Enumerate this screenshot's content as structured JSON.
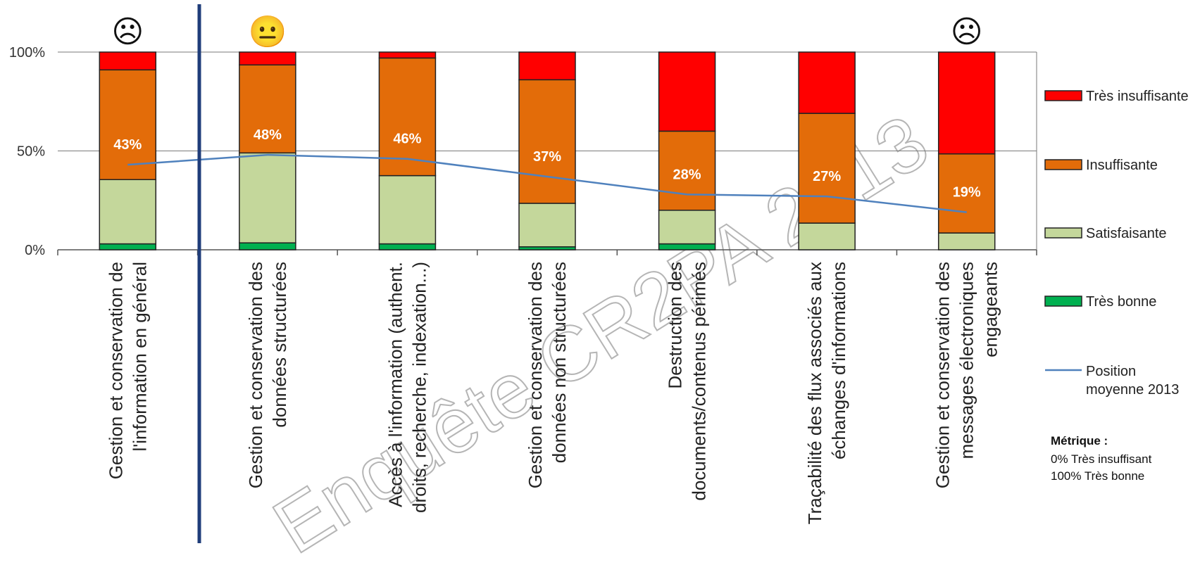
{
  "chart_data": {
    "type": "bar",
    "stacked": true,
    "categories": [
      [
        "Gestion et conservation de",
        "l'information en général"
      ],
      [
        "Gestion et conservation des",
        "données structurées"
      ],
      [
        "Accès à l'information (authent.",
        "droits, recherche, indexation...)"
      ],
      [
        "Gestion et conservation des",
        "données non structurées"
      ],
      [
        "Destruction des",
        "documents/contenus périmés"
      ],
      [
        "Traçabilité des flux associés aux",
        "échanges d'informations"
      ],
      [
        "Gestion et conservation des",
        "messages électroniques",
        "engageants"
      ]
    ],
    "series": [
      {
        "name": "Très bonne",
        "color": "#00b050",
        "values": [
          3,
          3.5,
          3,
          1.5,
          3,
          0,
          0
        ]
      },
      {
        "name": "Satisfaisante",
        "color": "#c4d79b",
        "values": [
          32.5,
          45.5,
          34.5,
          22,
          17,
          13.5,
          8.5
        ]
      },
      {
        "name": "Insuffisante",
        "color": "#e36c09",
        "values": [
          55.5,
          44.5,
          59.5,
          62.5,
          40,
          55.5,
          40
        ]
      },
      {
        "name": "Très insuffisante",
        "color": "#ff0000",
        "values": [
          9,
          6.5,
          3,
          14,
          40,
          31,
          51.5
        ]
      }
    ],
    "line": {
      "name": "Position moyenne 2013",
      "color": "#4f81bd",
      "values": [
        43,
        48,
        46,
        37,
        28,
        27,
        19
      ]
    },
    "point_labels": [
      "43%",
      "48%",
      "46%",
      "37%",
      "28%",
      "27%",
      "19%"
    ],
    "ylim": [
      0,
      100
    ],
    "yticks": [
      "0%",
      "50%",
      "100%"
    ],
    "grid": true,
    "legend_position": "right",
    "faces": [
      "☹",
      "😐",
      "",
      "",
      "",
      "",
      "☹"
    ],
    "watermark": "Enquête CR2PA 2013"
  },
  "legend": {
    "items": [
      "Très insuffisante",
      "Insuffisante",
      "Satisfaisante",
      "Très bonne"
    ],
    "line_label": [
      "Position",
      "moyenne 2013"
    ]
  },
  "metric": {
    "title": "Métrique :",
    "lines": [
      "0% Très insuffisant",
      "100% Très bonne"
    ]
  },
  "colors": {
    "divider": "#1f3d7a",
    "axis": "#555555"
  }
}
